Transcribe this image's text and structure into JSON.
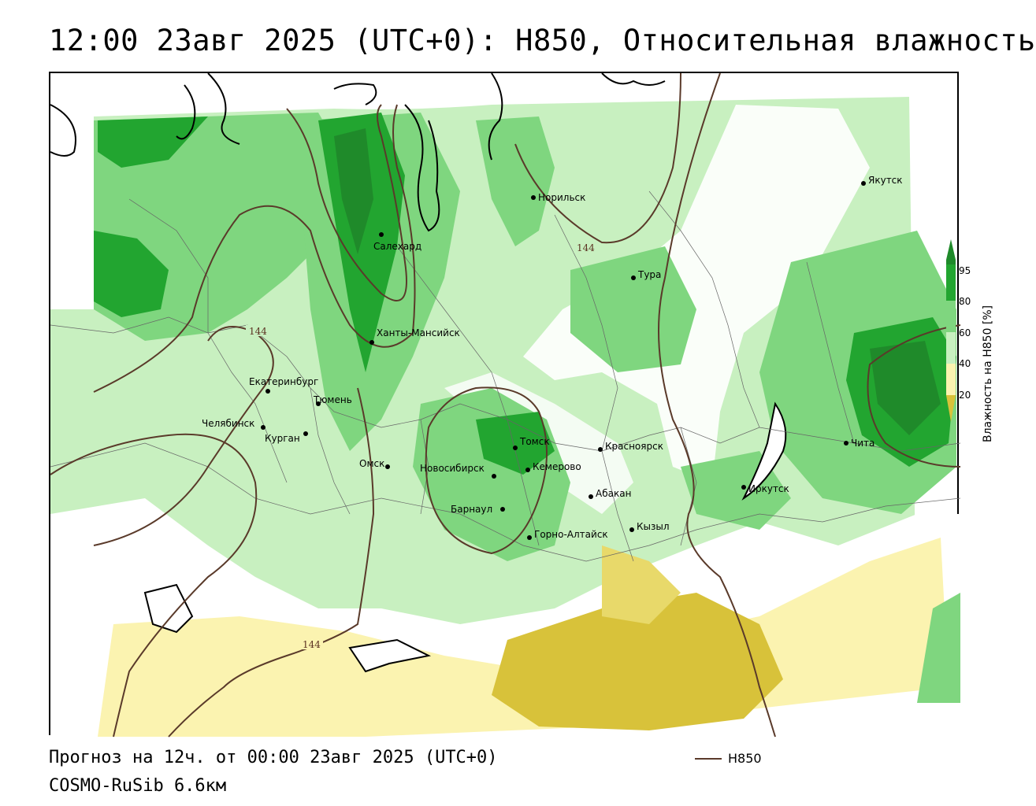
{
  "title": "12:00 23авг 2025 (UTC+0): H850, Относительная влажность",
  "footer": {
    "forecast": "Прогноз на 12ч. от 00:00 23авг 2025 (UTC+0)",
    "model": "COSMO-RuSib 6.6км"
  },
  "legend": {
    "line_label": "H850",
    "line_color": "#5a3a2a"
  },
  "colorbar": {
    "title": "Влажность на H850 [%]",
    "ticks": [
      "95",
      "80",
      "60",
      "40",
      "20"
    ],
    "colors": {
      "above_95": "#1f8a2a",
      "80_95": "#22a530",
      "60_80": "#7fd67f",
      "50_60": "#c8f0c0",
      "40_50": "#ffffff",
      "20_40": "#fbf3b0",
      "below_20": "#d8c23a"
    }
  },
  "contour_label": "144",
  "cities": [
    {
      "name": "Якутск"
    },
    {
      "name": "Норильск"
    },
    {
      "name": "Салехард"
    },
    {
      "name": "Тура"
    },
    {
      "name": "Ханты-Мансийск"
    },
    {
      "name": "Екатеринбург"
    },
    {
      "name": "Тюмень"
    },
    {
      "name": "Челябинск"
    },
    {
      "name": "Курган"
    },
    {
      "name": "Омск"
    },
    {
      "name": "Новосибирск"
    },
    {
      "name": "Томск"
    },
    {
      "name": "Кемерово"
    },
    {
      "name": "Красноярск"
    },
    {
      "name": "Барнаул"
    },
    {
      "name": "Абакан"
    },
    {
      "name": "Горно-Алтайск"
    },
    {
      "name": "Кызыл"
    },
    {
      "name": "Иркутск"
    },
    {
      "name": "Чита"
    }
  ]
}
